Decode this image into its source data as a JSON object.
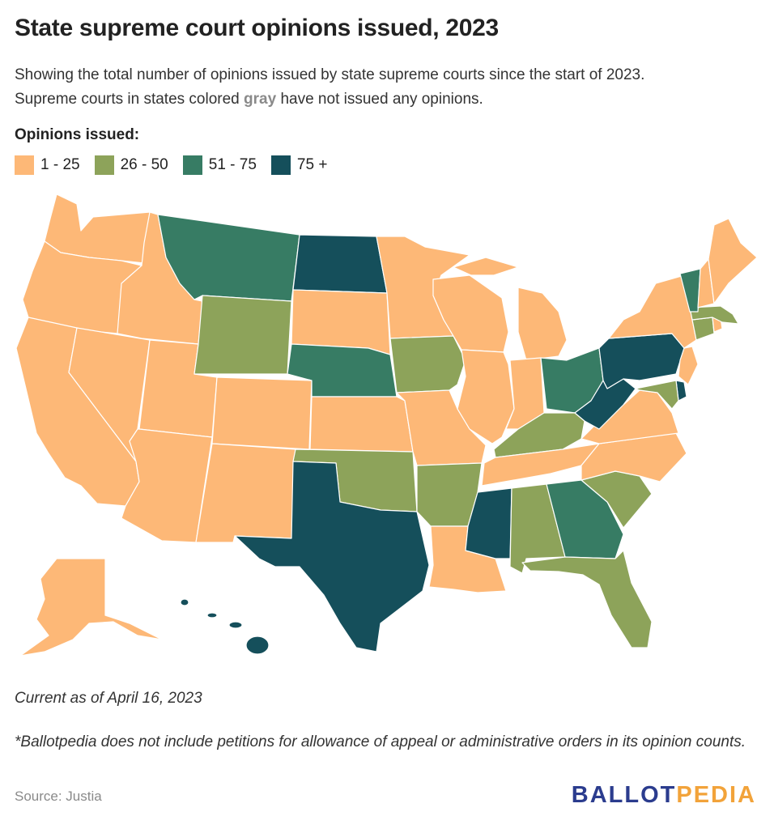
{
  "title": "State supreme court opinions issued, 2023",
  "subtitle_line1": "Showing the total number of opinions issued by state supreme courts since the start of 2023.",
  "subtitle_line2_pre": "Supreme courts in states colored ",
  "subtitle_line2_gray": "gray",
  "subtitle_line2_post": " have not issued any opinions.",
  "legend": {
    "title": "Opinions issued:",
    "items": [
      {
        "label": "1 - 25",
        "color": "#fdb877"
      },
      {
        "label": "26 - 50",
        "color": "#8da35a"
      },
      {
        "label": "51 - 75",
        "color": "#377c64"
      },
      {
        "label": "75 +",
        "color": "#154f5b"
      }
    ]
  },
  "colors": {
    "bin1": "#fdb877",
    "bin2": "#8da35a",
    "bin3": "#377c64",
    "bin4": "#154f5b",
    "gray": "#8a8a8a"
  },
  "states": {
    "WA": "1 - 25",
    "OR": "1 - 25",
    "CA": "1 - 25",
    "ID": "1 - 25",
    "NV": "1 - 25",
    "AZ": "1 - 25",
    "UT": "1 - 25",
    "MT": "51 - 75",
    "WY": "26 - 50",
    "CO": "1 - 25",
    "NM": "1 - 25",
    "ND": "75 +",
    "SD": "1 - 25",
    "NE": "51 - 75",
    "KS": "1 - 25",
    "OK": "26 - 50",
    "TX": "75 +",
    "MN": "1 - 25",
    "IA": "26 - 50",
    "MO": "1 - 25",
    "AR": "26 - 50",
    "LA": "1 - 25",
    "WI": "1 - 25",
    "IL": "1 - 25",
    "MI": "1 - 25",
    "IN": "1 - 25",
    "OH": "51 - 75",
    "KY": "26 - 50",
    "TN": "1 - 25",
    "MS": "75 +",
    "AL": "26 - 50",
    "GA": "51 - 75",
    "FL": "26 - 50",
    "SC": "26 - 50",
    "NC": "1 - 25",
    "VA": "1 - 25",
    "WV": "75 +",
    "PA": "75 +",
    "NY": "1 - 25",
    "VT": "51 - 75",
    "NH": "1 - 25",
    "ME": "1 - 25",
    "MA": "26 - 50",
    "CT": "26 - 50",
    "RI": "1 - 25",
    "NJ": "1 - 25",
    "DE": "75 +",
    "MD": "26 - 50",
    "AK": "1 - 25",
    "HI": "75 +"
  },
  "note": "Current as of April 16, 2023",
  "footnote": "*Ballotpedia does not include petitions for allowance of appeal or administrative orders in its opinion counts.",
  "source": "Source: Justia",
  "brand_part1": "BALLOT",
  "brand_part2": "PEDIA"
}
